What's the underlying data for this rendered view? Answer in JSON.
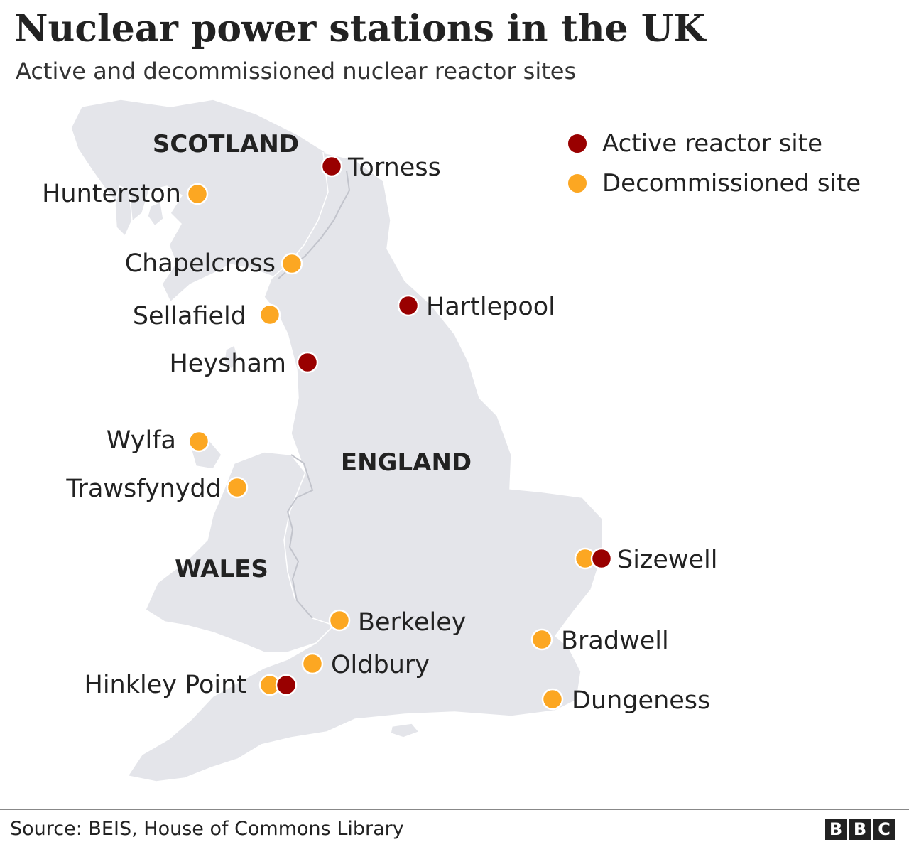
{
  "title": "Nuclear power stations in the UK",
  "subtitle": "Active and decommissioned nuclear reactor sites",
  "colors": {
    "active": "#990000",
    "decommissioned": "#fca722",
    "land": "#e4e5ea",
    "border": "#c2c4cc"
  },
  "legend": {
    "active": "Active reactor site",
    "decommissioned": "Decommissioned site"
  },
  "regions": {
    "scotland": "SCOTLAND",
    "england": "ENGLAND",
    "wales": "WALES"
  },
  "sites": [
    {
      "name": "Torness",
      "status": "active"
    },
    {
      "name": "Hunterston",
      "status": "decommissioned"
    },
    {
      "name": "Chapelcross",
      "status": "decommissioned"
    },
    {
      "name": "Hartlepool",
      "status": "active"
    },
    {
      "name": "Sellafield",
      "status": "decommissioned"
    },
    {
      "name": "Heysham",
      "status": "active"
    },
    {
      "name": "Wylfa",
      "status": "decommissioned"
    },
    {
      "name": "Trawsfynydd",
      "status": "decommissioned"
    },
    {
      "name": "Sizewell",
      "status": "active and decommissioned"
    },
    {
      "name": "Berkeley",
      "status": "decommissioned"
    },
    {
      "name": "Bradwell",
      "status": "decommissioned"
    },
    {
      "name": "Oldbury",
      "status": "decommissioned"
    },
    {
      "name": "Hinkley Point",
      "status": "active and decommissioned"
    },
    {
      "name": "Dungeness",
      "status": "decommissioned"
    }
  ],
  "source": "Source: BEIS, House of Commons Library",
  "logo": [
    "B",
    "B",
    "C"
  ]
}
